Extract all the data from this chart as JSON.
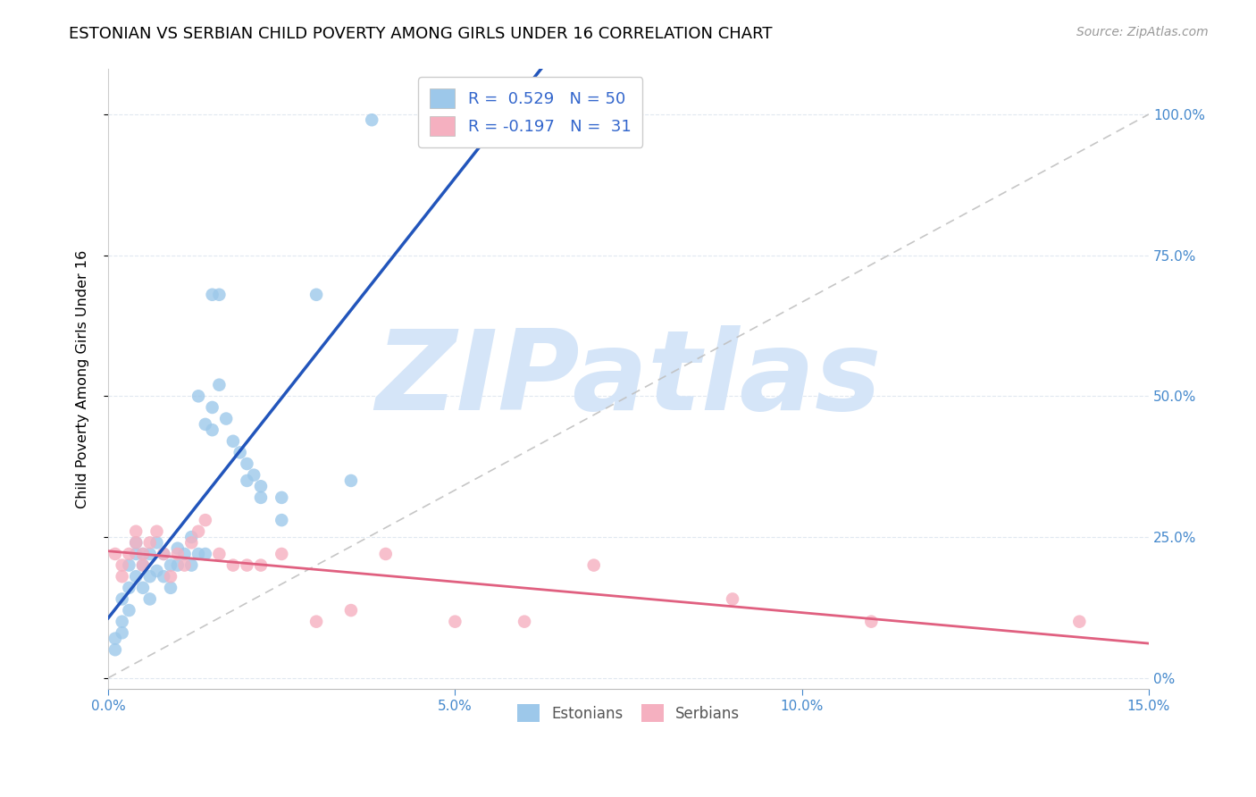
{
  "title": "ESTONIAN VS SERBIAN CHILD POVERTY AMONG GIRLS UNDER 16 CORRELATION CHART",
  "source": "Source: ZipAtlas.com",
  "ylabel": "Child Poverty Among Girls Under 16",
  "xlim": [
    0.0,
    0.15
  ],
  "ylim": [
    -0.02,
    1.08
  ],
  "xtick_vals": [
    0.0,
    0.05,
    0.1,
    0.15
  ],
  "xtick_labels": [
    "0.0%",
    "5.0%",
    "10.0%",
    "15.0%"
  ],
  "ytick_vals": [
    0.0,
    0.25,
    0.5,
    0.75,
    1.0
  ],
  "ytick_labels": [
    "0%",
    "25.0%",
    "50.0%",
    "75.0%",
    "100.0%"
  ],
  "r_estonian": 0.529,
  "n_estonian": 50,
  "r_serbian": -0.197,
  "n_serbian": 31,
  "color_estonian": "#9DC8EA",
  "color_serbian": "#F5B0C0",
  "line_color_estonian": "#2255BB",
  "line_color_serbian": "#E06080",
  "watermark": "ZIPatlas",
  "watermark_color": "#D5E5F8",
  "label_color": "#3366CC",
  "axis_tick_color": "#4488CC",
  "grid_color": "#E0E8F0",
  "est_x": [
    0.001,
    0.001,
    0.002,
    0.002,
    0.002,
    0.003,
    0.003,
    0.003,
    0.004,
    0.004,
    0.004,
    0.005,
    0.005,
    0.005,
    0.006,
    0.006,
    0.006,
    0.007,
    0.007,
    0.008,
    0.008,
    0.009,
    0.009,
    0.01,
    0.01,
    0.011,
    0.012,
    0.012,
    0.013,
    0.014,
    0.015,
    0.015,
    0.016,
    0.017,
    0.018,
    0.019,
    0.02,
    0.021,
    0.022,
    0.025,
    0.015,
    0.016,
    0.013,
    0.014,
    0.02,
    0.022,
    0.025,
    0.03,
    0.035,
    0.038
  ],
  "est_y": [
    0.05,
    0.07,
    0.08,
    0.1,
    0.14,
    0.12,
    0.16,
    0.2,
    0.18,
    0.22,
    0.24,
    0.16,
    0.2,
    0.22,
    0.14,
    0.18,
    0.22,
    0.24,
    0.19,
    0.18,
    0.22,
    0.2,
    0.16,
    0.23,
    0.2,
    0.22,
    0.2,
    0.25,
    0.22,
    0.22,
    0.44,
    0.48,
    0.52,
    0.46,
    0.42,
    0.4,
    0.38,
    0.36,
    0.34,
    0.32,
    0.68,
    0.68,
    0.5,
    0.45,
    0.35,
    0.32,
    0.28,
    0.68,
    0.35,
    0.99
  ],
  "ser_x": [
    0.001,
    0.002,
    0.002,
    0.003,
    0.004,
    0.004,
    0.005,
    0.005,
    0.006,
    0.007,
    0.008,
    0.009,
    0.01,
    0.011,
    0.012,
    0.013,
    0.014,
    0.016,
    0.018,
    0.02,
    0.022,
    0.025,
    0.03,
    0.035,
    0.04,
    0.05,
    0.06,
    0.07,
    0.09,
    0.11,
    0.14
  ],
  "ser_y": [
    0.22,
    0.2,
    0.18,
    0.22,
    0.26,
    0.24,
    0.22,
    0.2,
    0.24,
    0.26,
    0.22,
    0.18,
    0.22,
    0.2,
    0.24,
    0.26,
    0.28,
    0.22,
    0.2,
    0.2,
    0.2,
    0.22,
    0.1,
    0.12,
    0.22,
    0.1,
    0.1,
    0.2,
    0.14,
    0.1,
    0.1
  ],
  "diag_line_x": [
    0.0,
    0.15
  ],
  "diag_line_y": [
    0.0,
    1.0
  ]
}
